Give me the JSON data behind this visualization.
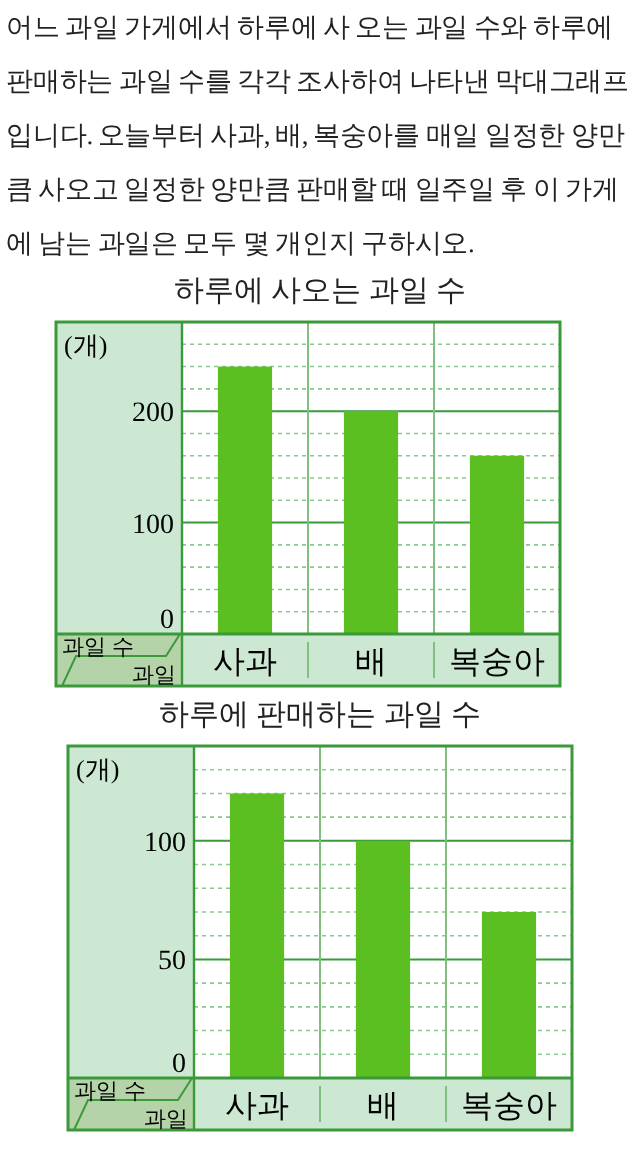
{
  "chart_data": [
    {
      "type": "bar",
      "title": "하루에 사오는 과일 수",
      "xlabel": "과일",
      "ylabel": "과일 수",
      "categories": [
        "사과",
        "배",
        "복숭아"
      ],
      "values": [
        240,
        200,
        160
      ],
      "color": "#5bbf21",
      "ylim": [
        0,
        280
      ],
      "yticks": [
        0,
        {
          "value": 20,
          "label": null
        },
        {
          "value": 40,
          "label": null
        },
        {
          "value": 60,
          "label": null
        },
        {
          "value": 80,
          "label": null
        },
        100,
        {
          "value": 120,
          "label": null
        },
        {
          "value": 140,
          "label": null
        },
        {
          "value": 160,
          "label": null
        },
        {
          "value": 180,
          "label": null
        },
        200,
        {
          "value": 220,
          "label": null
        },
        {
          "value": 240,
          "label": null
        },
        {
          "value": 260,
          "label": null
        }
      ],
      "grid": "y",
      "annotations": [
        "어느 과일 가게에서 하루에 사 오는 과일 수와 하루에 판매하는 과일 수를 각각 조사하여 나타낸 막대그래프입니다. 오늘부터 사과, 배, 복숭아를 매일 일정한 양만큼 사오고 일정한 양만큼 판매할 때 일주일 후 이 가게에 남는 과일은 모두 몇 개인지 구하시오.",
        "(개)"
      ]
    },
    {
      "type": "bar",
      "title": "하루에 판매하는 과일 수",
      "xlabel": "과일",
      "ylabel": "과일 수",
      "categories": [
        "사과",
        "배",
        "복숭아"
      ],
      "values": [
        120,
        100,
        70
      ],
      "color": "#5bbf21",
      "ylim": [
        0,
        140
      ],
      "yticks": [
        0,
        {
          "value": 10,
          "label": null
        },
        {
          "value": 20,
          "label": null
        },
        {
          "value": 30,
          "label": null
        },
        {
          "value": 40,
          "label": null
        },
        50,
        {
          "value": 60,
          "label": null
        },
        {
          "value": 70,
          "label": null
        },
        {
          "value": 80,
          "label": null
        },
        {
          "value": 90,
          "label": null
        },
        100,
        {
          "value": 110,
          "label": null
        },
        {
          "value": 120,
          "label": null
        },
        {
          "value": 130,
          "label": null
        }
      ],
      "grid": "y",
      "annotations": [
        "(개)"
      ]
    }
  ]
}
